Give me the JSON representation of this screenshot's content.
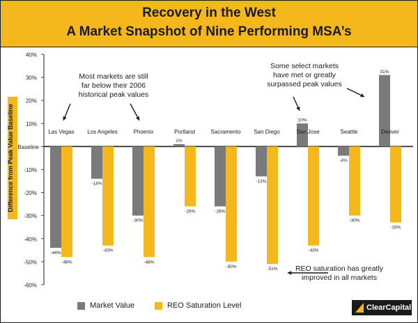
{
  "title": "Recovery in the West",
  "subtitle": "A Market Snapshot of Nine Performing MSA’s",
  "ylabel": "Difference from Peak Value Baseline",
  "baseline_label": "Baseline",
  "colors": {
    "market": "#7a7a7c",
    "reo": "#f5b81c",
    "header": "#f5b81c"
  },
  "annotations": {
    "left_note": [
      "Most markets are still",
      "far below their 2006",
      "historical peak values"
    ],
    "right_note": [
      "Some select markets",
      "have met or greatly",
      "surpassed peak values"
    ],
    "bottom_note": [
      "REO saturation has greatly",
      "improved in all markets"
    ]
  },
  "legend": {
    "market": "Market Value",
    "reo": "REO Saturation Level"
  },
  "logo": "ClearCapital",
  "chart_data": {
    "type": "bar",
    "categories": [
      "Las Vegas",
      "Los Angeles",
      "Phoenix",
      "Portland",
      "Sacramento",
      "San Diego",
      "San Jose",
      "Seattle",
      "Denver"
    ],
    "series": [
      {
        "name": "Market Value",
        "values": [
          -44,
          -14,
          -30,
          1,
          -26,
          -13,
          10,
          -4,
          31
        ],
        "labels": [
          "-44%",
          "-14%",
          "-30%",
          "1%",
          "-26%",
          "-13%",
          "10%",
          "-4%",
          "31%"
        ]
      },
      {
        "name": "REO Saturation Level",
        "values": [
          -48,
          -43,
          -48,
          -26,
          -50,
          -51,
          -43,
          -30,
          -33
        ],
        "labels": [
          "-48%",
          "-43%",
          "-48%",
          "-26%",
          "-50%",
          "-51%",
          "-43%",
          "-30%",
          "-33%"
        ]
      }
    ],
    "yticks": [
      40,
      30,
      20,
      10,
      0,
      -10,
      -20,
      -30,
      -40,
      -50,
      -60
    ],
    "ytick_labels": [
      "40%",
      "30%",
      "20%",
      "10%",
      "Baseline",
      "-10%",
      "-20%",
      "-30%",
      "-40%",
      "-50%",
      "-60%"
    ],
    "ylim": [
      -60,
      40
    ],
    "ylabel": "Difference from Peak Value Baseline",
    "legend_position": "bottom"
  }
}
